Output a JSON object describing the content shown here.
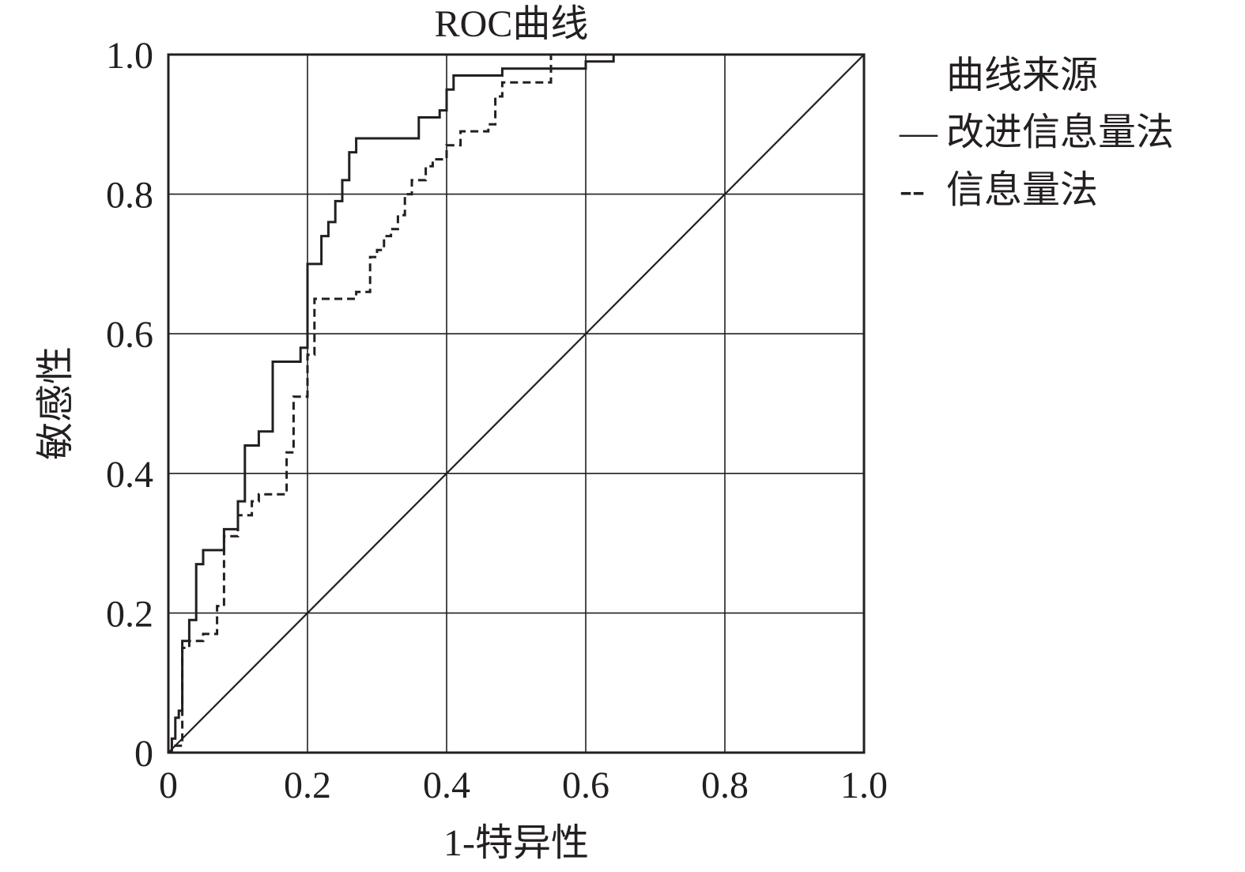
{
  "chart_data": {
    "type": "line",
    "title": "ROC曲线",
    "xlabel": "1-特异性",
    "ylabel": "敏感性",
    "xlim": [
      0,
      1
    ],
    "ylim": [
      0,
      1
    ],
    "x_ticks": [
      "0",
      "0.2",
      "0.4",
      "0.6",
      "0.8",
      "1.0"
    ],
    "y_ticks": [
      "0",
      "0.2",
      "0.4",
      "0.6",
      "0.8",
      "1.0"
    ],
    "grid": true,
    "legend": {
      "title": "曲线来源",
      "placement": "right",
      "entries": [
        {
          "symbol": "—",
          "label": "改进信息量法"
        },
        {
          "symbol": "--",
          "label": "信息量法"
        }
      ]
    },
    "series": [
      {
        "name": "改进信息量法",
        "style": "solid",
        "points": [
          [
            0,
            0
          ],
          [
            0.005,
            0
          ],
          [
            0.005,
            0.02
          ],
          [
            0.01,
            0.02
          ],
          [
            0.01,
            0.05
          ],
          [
            0.015,
            0.05
          ],
          [
            0.015,
            0.06
          ],
          [
            0.02,
            0.06
          ],
          [
            0.02,
            0.16
          ],
          [
            0.03,
            0.16
          ],
          [
            0.03,
            0.19
          ],
          [
            0.04,
            0.19
          ],
          [
            0.04,
            0.27
          ],
          [
            0.05,
            0.27
          ],
          [
            0.05,
            0.29
          ],
          [
            0.08,
            0.29
          ],
          [
            0.08,
            0.32
          ],
          [
            0.1,
            0.32
          ],
          [
            0.1,
            0.36
          ],
          [
            0.11,
            0.36
          ],
          [
            0.11,
            0.44
          ],
          [
            0.13,
            0.44
          ],
          [
            0.13,
            0.46
          ],
          [
            0.15,
            0.46
          ],
          [
            0.15,
            0.56
          ],
          [
            0.19,
            0.56
          ],
          [
            0.19,
            0.58
          ],
          [
            0.2,
            0.58
          ],
          [
            0.2,
            0.7
          ],
          [
            0.22,
            0.7
          ],
          [
            0.22,
            0.74
          ],
          [
            0.23,
            0.74
          ],
          [
            0.23,
            0.76
          ],
          [
            0.24,
            0.76
          ],
          [
            0.24,
            0.79
          ],
          [
            0.25,
            0.79
          ],
          [
            0.25,
            0.82
          ],
          [
            0.26,
            0.82
          ],
          [
            0.26,
            0.86
          ],
          [
            0.27,
            0.86
          ],
          [
            0.27,
            0.88
          ],
          [
            0.36,
            0.88
          ],
          [
            0.36,
            0.91
          ],
          [
            0.39,
            0.91
          ],
          [
            0.39,
            0.92
          ],
          [
            0.4,
            0.92
          ],
          [
            0.4,
            0.95
          ],
          [
            0.41,
            0.95
          ],
          [
            0.41,
            0.97
          ],
          [
            0.48,
            0.97
          ],
          [
            0.48,
            0.98
          ],
          [
            0.6,
            0.98
          ],
          [
            0.6,
            0.99
          ],
          [
            0.64,
            0.99
          ],
          [
            0.64,
            1.0
          ],
          [
            1.0,
            1.0
          ]
        ]
      },
      {
        "name": "信息量法",
        "style": "dashed",
        "points": [
          [
            0,
            0
          ],
          [
            0.01,
            0
          ],
          [
            0.01,
            0.01
          ],
          [
            0.02,
            0.01
          ],
          [
            0.02,
            0.15
          ],
          [
            0.03,
            0.15
          ],
          [
            0.03,
            0.16
          ],
          [
            0.05,
            0.16
          ],
          [
            0.05,
            0.17
          ],
          [
            0.07,
            0.17
          ],
          [
            0.07,
            0.21
          ],
          [
            0.08,
            0.21
          ],
          [
            0.08,
            0.31
          ],
          [
            0.1,
            0.31
          ],
          [
            0.1,
            0.34
          ],
          [
            0.12,
            0.34
          ],
          [
            0.12,
            0.36
          ],
          [
            0.13,
            0.36
          ],
          [
            0.13,
            0.37
          ],
          [
            0.17,
            0.37
          ],
          [
            0.17,
            0.43
          ],
          [
            0.18,
            0.43
          ],
          [
            0.18,
            0.51
          ],
          [
            0.2,
            0.51
          ],
          [
            0.2,
            0.57
          ],
          [
            0.21,
            0.57
          ],
          [
            0.21,
            0.65
          ],
          [
            0.27,
            0.65
          ],
          [
            0.27,
            0.66
          ],
          [
            0.29,
            0.66
          ],
          [
            0.29,
            0.71
          ],
          [
            0.3,
            0.71
          ],
          [
            0.3,
            0.72
          ],
          [
            0.31,
            0.72
          ],
          [
            0.31,
            0.74
          ],
          [
            0.32,
            0.74
          ],
          [
            0.32,
            0.75
          ],
          [
            0.33,
            0.75
          ],
          [
            0.33,
            0.77
          ],
          [
            0.34,
            0.77
          ],
          [
            0.34,
            0.8
          ],
          [
            0.35,
            0.8
          ],
          [
            0.35,
            0.82
          ],
          [
            0.37,
            0.82
          ],
          [
            0.37,
            0.84
          ],
          [
            0.38,
            0.84
          ],
          [
            0.38,
            0.85
          ],
          [
            0.4,
            0.85
          ],
          [
            0.4,
            0.87
          ],
          [
            0.42,
            0.87
          ],
          [
            0.42,
            0.89
          ],
          [
            0.46,
            0.89
          ],
          [
            0.46,
            0.9
          ],
          [
            0.47,
            0.9
          ],
          [
            0.47,
            0.94
          ],
          [
            0.48,
            0.94
          ],
          [
            0.48,
            0.96
          ],
          [
            0.55,
            0.96
          ],
          [
            0.55,
            1.0
          ],
          [
            1.0,
            1.0
          ]
        ]
      }
    ],
    "reference_line": {
      "style": "solid",
      "points": [
        [
          0,
          0
        ],
        [
          1,
          1
        ]
      ]
    }
  }
}
